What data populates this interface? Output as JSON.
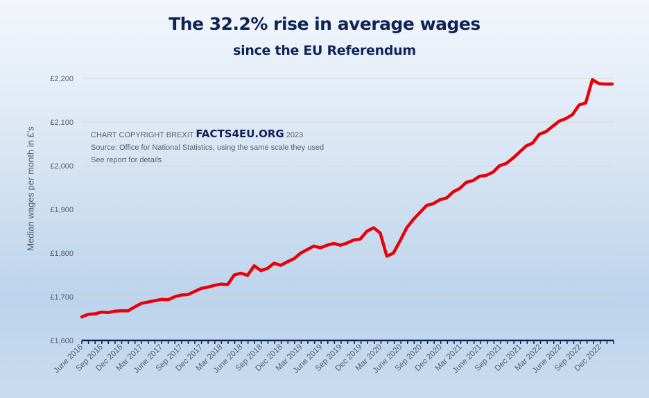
{
  "colors": {
    "title": "#0f2357",
    "line": "#e8000b",
    "axis": "#0f2357",
    "gridline": "#d9d6d2",
    "tick_label": "#555c66"
  },
  "credits": {
    "prefix": "CHART COPYRIGHT BREXIT",
    "brand": "FACTS4EU.ORG",
    "year": "2023",
    "source": "Source: Office for National Statistics, using the same scale they used",
    "note": "See report for details"
  },
  "chart_data": {
    "type": "line",
    "title": "The 32.2% rise in average wages",
    "subtitle": "since the EU Referendum",
    "xlabel": "",
    "ylabel": "Median wages per month in £'s",
    "ylim": [
      1600,
      2200
    ],
    "yticks": [
      1600,
      1700,
      1800,
      1900,
      2000,
      2100,
      2200
    ],
    "ytick_labels": [
      "£1,600",
      "£1,700",
      "£1,800",
      "£1,900",
      "£2,000",
      "£2,100",
      "£2,200"
    ],
    "grid": true,
    "legend": "none",
    "x_tick_labels": [
      "June 2016",
      "Sep 2016",
      "Dec 2016",
      "Mar 2017",
      "June 2017",
      "Sep 2017",
      "Dec 2017",
      "Mar 2018",
      "June 2018",
      "Sep 2018",
      "Dec 2018",
      "Mar 2019",
      "June 2019",
      "Sep 2019",
      "Dec 2019",
      "Mar 2020",
      "June 2020",
      "Sep 2020",
      "Dec 2020",
      "Mar 2021",
      "June 2021",
      "Sep 2021",
      "Dec 2021",
      "Mar 2022",
      "June 2022",
      "Sep 2022",
      "Dec 2022"
    ],
    "x_tick_label_every": 3,
    "x_periods": 80,
    "series": [
      {
        "name": "Median wages per month",
        "values": [
          1654,
          1660,
          1661,
          1665,
          1664,
          1667,
          1668,
          1668,
          1677,
          1685,
          1688,
          1691,
          1694,
          1693,
          1700,
          1704,
          1705,
          1712,
          1719,
          1722,
          1726,
          1729,
          1728,
          1750,
          1754,
          1749,
          1771,
          1760,
          1765,
          1777,
          1772,
          1780,
          1787,
          1800,
          1808,
          1816,
          1812,
          1818,
          1822,
          1818,
          1823,
          1830,
          1832,
          1850,
          1858,
          1846,
          1793,
          1800,
          1828,
          1858,
          1877,
          1893,
          1909,
          1913,
          1922,
          1926,
          1940,
          1948,
          1962,
          1966,
          1976,
          1978,
          1985,
          2000,
          2005,
          2017,
          2031,
          2045,
          2052,
          2072,
          2078,
          2090,
          2102,
          2108,
          2117,
          2139,
          2144,
          2197,
          2188,
          2187,
          2187
        ]
      }
    ]
  }
}
